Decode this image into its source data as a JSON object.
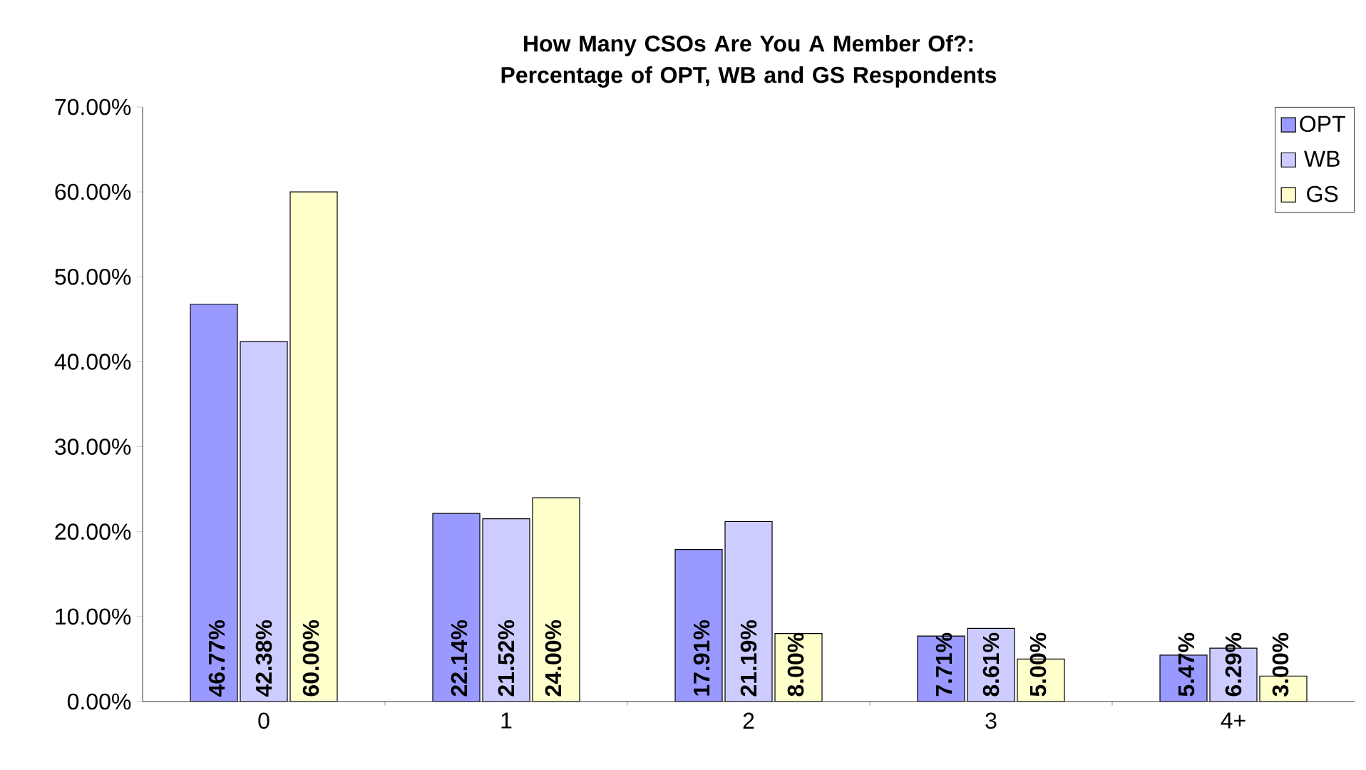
{
  "chart_data": {
    "type": "bar",
    "title": "How Many CSOs Are You A Member Of?: Percentage of OPT, WB and GS Respondents",
    "categories": [
      "0",
      "1",
      "2",
      "3",
      "4+"
    ],
    "series": [
      {
        "name": "OPT",
        "color": "#9999ff",
        "values": [
          46.77,
          22.14,
          17.91,
          7.71,
          5.47
        ],
        "value_labels": [
          "46.77%",
          "22.14%",
          "17.91%",
          "7.71%",
          "5.47%"
        ]
      },
      {
        "name": "WB",
        "color": "#ccccff",
        "values": [
          42.38,
          21.52,
          21.19,
          8.61,
          6.29
        ],
        "value_labels": [
          "42.38%",
          "21.52%",
          "21.19%",
          "8.61%",
          "6.29%"
        ]
      },
      {
        "name": "GS",
        "color": "#ffffcc",
        "values": [
          60.0,
          24.0,
          8.0,
          5.0,
          3.0
        ],
        "value_labels": [
          "60.00%",
          "24.00%",
          "8.00%",
          "5.00%",
          "3.00%"
        ]
      }
    ],
    "ylim": [
      0,
      70
    ],
    "yticks": [
      {
        "value": 0,
        "label": "0.00%"
      },
      {
        "value": 10,
        "label": "10.00%"
      },
      {
        "value": 20,
        "label": "20.00%"
      },
      {
        "value": 30,
        "label": "30.00%"
      },
      {
        "value": 40,
        "label": "40.00%"
      },
      {
        "value": 50,
        "label": "50.00%"
      },
      {
        "value": 60,
        "label": "60.00%"
      },
      {
        "value": 70,
        "label": "70.00%"
      }
    ],
    "grid": false,
    "legend": "top right"
  }
}
